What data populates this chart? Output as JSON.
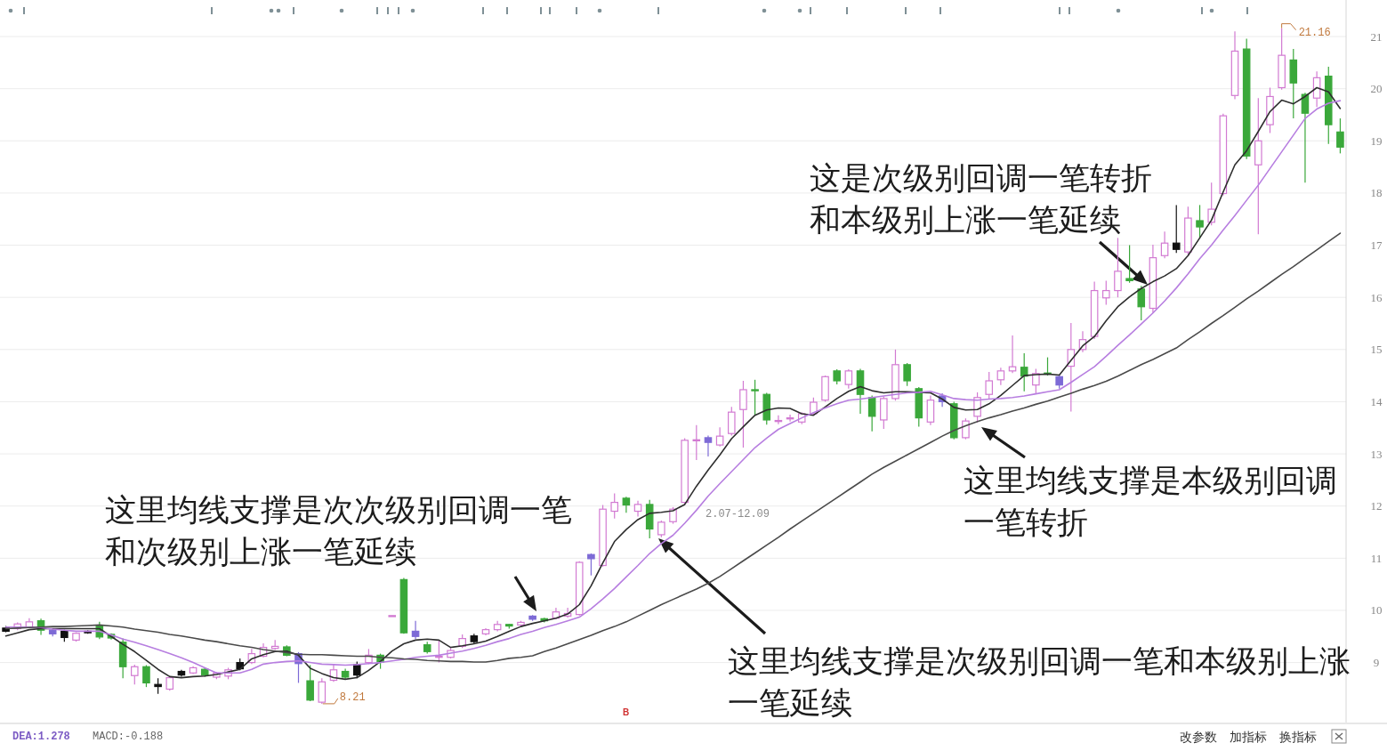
{
  "chart_data": {
    "type": "candlestick",
    "categories": [
      null,
      null,
      null,
      null,
      null,
      null,
      null,
      null,
      null,
      null,
      null,
      null,
      null,
      null,
      null,
      null,
      null,
      null,
      null,
      null,
      null,
      null,
      null,
      null,
      null,
      null,
      null,
      null,
      null,
      null,
      null,
      null,
      null,
      null,
      null,
      null,
      null,
      null,
      null,
      null,
      null,
      null,
      null,
      null,
      null,
      null,
      null,
      null,
      null,
      null,
      null,
      null,
      null,
      null,
      null,
      null,
      null,
      null,
      null,
      null,
      null,
      null,
      null,
      null,
      null,
      null,
      null,
      null,
      null,
      null,
      null,
      null,
      null,
      null,
      null,
      null,
      null,
      null,
      null,
      null,
      null,
      null,
      null,
      null,
      null,
      null,
      null,
      null,
      null,
      null,
      null,
      null,
      null,
      null,
      null,
      null,
      null,
      null,
      null,
      null,
      null,
      null,
      null,
      null,
      null,
      null,
      null,
      null,
      null,
      null,
      null,
      null,
      null,
      null,
      null
    ],
    "ohlc": [
      [
        9.66,
        9.7,
        9.58,
        9.6
      ],
      [
        9.65,
        9.77,
        9.62,
        9.74
      ],
      [
        9.68,
        9.85,
        9.66,
        9.78
      ],
      [
        9.8,
        9.84,
        9.53,
        9.62
      ],
      [
        9.62,
        9.65,
        9.5,
        9.55
      ],
      [
        9.6,
        9.63,
        9.4,
        9.48
      ],
      [
        9.43,
        9.58,
        9.4,
        9.56
      ],
      [
        9.6,
        9.62,
        9.55,
        9.57
      ],
      [
        9.7,
        9.78,
        9.45,
        9.49
      ],
      [
        9.54,
        9.56,
        9.44,
        9.47
      ],
      [
        9.39,
        9.46,
        8.7,
        8.92
      ],
      [
        8.75,
        8.96,
        8.58,
        8.92
      ],
      [
        8.92,
        8.95,
        8.53,
        8.61
      ],
      [
        8.58,
        8.7,
        8.4,
        8.54
      ],
      [
        8.49,
        8.73,
        8.46,
        8.71
      ],
      [
        8.83,
        8.86,
        8.73,
        8.76
      ],
      [
        8.8,
        8.93,
        8.78,
        8.9
      ],
      [
        8.87,
        8.89,
        8.73,
        8.76
      ],
      [
        8.72,
        8.82,
        8.68,
        8.8
      ],
      [
        8.74,
        8.9,
        8.68,
        8.86
      ],
      [
        9.0,
        9.08,
        8.85,
        8.88
      ],
      [
        9.0,
        9.26,
        8.97,
        9.17
      ],
      [
        9.12,
        9.37,
        9.1,
        9.29
      ],
      [
        9.27,
        9.43,
        9.24,
        9.31
      ],
      [
        9.3,
        9.33,
        9.12,
        9.14
      ],
      [
        9.17,
        9.2,
        8.61,
        8.98
      ],
      [
        8.65,
        8.95,
        8.26,
        8.28
      ],
      [
        8.24,
        8.7,
        8.21,
        8.63
      ],
      [
        8.66,
        8.96,
        8.63,
        8.86
      ],
      [
        8.83,
        8.88,
        8.68,
        8.72
      ],
      [
        8.96,
        9.02,
        8.7,
        8.76
      ],
      [
        9.0,
        9.26,
        8.97,
        9.14
      ],
      [
        9.14,
        9.17,
        8.88,
        9.01
      ],
      [
        9.88,
        9.9,
        9.88,
        9.9
      ],
      [
        10.59,
        10.62,
        9.55,
        9.57
      ],
      [
        9.6,
        9.8,
        9.45,
        9.5
      ],
      [
        9.34,
        9.4,
        9.17,
        9.21
      ],
      [
        9.1,
        9.43,
        9.0,
        9.12
      ],
      [
        9.1,
        9.28,
        9.08,
        9.23
      ],
      [
        9.31,
        9.54,
        9.28,
        9.46
      ],
      [
        9.51,
        9.55,
        9.37,
        9.4
      ],
      [
        9.55,
        9.66,
        9.52,
        9.63
      ],
      [
        9.63,
        9.8,
        9.6,
        9.73
      ],
      [
        9.73,
        9.74,
        9.65,
        9.7
      ],
      [
        9.72,
        9.8,
        9.7,
        9.77
      ],
      [
        9.89,
        9.91,
        9.8,
        9.83
      ],
      [
        9.84,
        9.86,
        9.77,
        9.8
      ],
      [
        9.85,
        10.05,
        9.83,
        9.97
      ],
      [
        9.89,
        10.05,
        9.86,
        9.94
      ],
      [
        9.92,
        10.94,
        9.9,
        10.92
      ],
      [
        11.07,
        11.09,
        10.67,
        10.99
      ],
      [
        10.86,
        12.02,
        10.84,
        11.94
      ],
      [
        11.9,
        12.24,
        11.76,
        12.07
      ],
      [
        12.15,
        12.18,
        11.87,
        12.02
      ],
      [
        11.9,
        12.1,
        11.8,
        12.03
      ],
      [
        12.03,
        12.12,
        11.38,
        11.56
      ],
      [
        11.45,
        11.72,
        11.4,
        11.69
      ],
      [
        11.7,
        11.98,
        11.66,
        11.94
      ],
      [
        12.07,
        13.3,
        12.02,
        13.26
      ],
      [
        13.25,
        13.55,
        12.88,
        13.27
      ],
      [
        13.31,
        13.35,
        12.95,
        13.22
      ],
      [
        13.17,
        13.51,
        13.14,
        13.34
      ],
      [
        13.39,
        13.9,
        13.35,
        13.8
      ],
      [
        13.85,
        14.4,
        13.12,
        14.23
      ],
      [
        14.23,
        14.42,
        13.74,
        14.21
      ],
      [
        14.14,
        14.17,
        13.56,
        13.65
      ],
      [
        13.62,
        13.74,
        13.57,
        13.64
      ],
      [
        13.67,
        13.75,
        13.62,
        13.69
      ],
      [
        13.61,
        13.8,
        13.57,
        13.77
      ],
      [
        13.77,
        14.08,
        13.74,
        13.99
      ],
      [
        14.03,
        14.5,
        14.0,
        14.48
      ],
      [
        14.59,
        14.62,
        14.33,
        14.4
      ],
      [
        14.33,
        14.62,
        14.25,
        14.59
      ],
      [
        14.59,
        14.63,
        13.77,
        14.14
      ],
      [
        14.08,
        14.12,
        13.43,
        13.72
      ],
      [
        13.65,
        14.1,
        13.48,
        14.06
      ],
      [
        14.06,
        15.0,
        14.02,
        14.71
      ],
      [
        14.71,
        14.74,
        14.3,
        14.4
      ],
      [
        14.25,
        14.28,
        13.52,
        13.69
      ],
      [
        13.61,
        14.12,
        13.55,
        14.03
      ],
      [
        14.11,
        14.16,
        13.9,
        14.0
      ],
      [
        13.96,
        14.0,
        13.28,
        13.31
      ],
      [
        13.31,
        13.68,
        13.28,
        13.63
      ],
      [
        13.72,
        14.18,
        13.6,
        14.08
      ],
      [
        14.14,
        14.57,
        14.05,
        14.4
      ],
      [
        14.42,
        14.65,
        14.32,
        14.59
      ],
      [
        14.59,
        15.27,
        14.55,
        14.67
      ],
      [
        14.66,
        14.93,
        14.2,
        14.49
      ],
      [
        14.32,
        14.63,
        14.16,
        14.54
      ],
      [
        14.55,
        14.85,
        14.5,
        14.53
      ],
      [
        14.48,
        14.52,
        14.25,
        14.32
      ],
      [
        14.68,
        15.51,
        13.81,
        15.0
      ],
      [
        15.0,
        15.35,
        14.95,
        15.19
      ],
      [
        15.25,
        16.3,
        15.2,
        16.13
      ],
      [
        15.99,
        16.32,
        15.86,
        16.13
      ],
      [
        16.13,
        17.14,
        16.0,
        16.5
      ],
      [
        16.36,
        17.0,
        16.28,
        16.32
      ],
      [
        16.16,
        16.22,
        15.56,
        15.82
      ],
      [
        15.79,
        17.01,
        15.7,
        16.76
      ],
      [
        16.8,
        17.26,
        16.75,
        17.04
      ],
      [
        17.04,
        17.77,
        16.85,
        16.92
      ],
      [
        16.87,
        17.74,
        16.82,
        17.52
      ],
      [
        17.47,
        17.77,
        17.13,
        17.35
      ],
      [
        17.44,
        18.2,
        17.38,
        17.69
      ],
      [
        17.99,
        19.52,
        17.95,
        19.48
      ],
      [
        19.87,
        21.1,
        19.8,
        20.72
      ],
      [
        20.76,
        20.96,
        18.65,
        18.71
      ],
      [
        18.54,
        19.82,
        17.21,
        19.0
      ],
      [
        19.31,
        20.02,
        19.15,
        19.85
      ],
      [
        20.02,
        21.16,
        19.98,
        20.64
      ],
      [
        20.55,
        20.76,
        19.43,
        20.11
      ],
      [
        19.89,
        19.92,
        18.2,
        19.53
      ],
      [
        19.82,
        20.33,
        19.65,
        20.21
      ],
      [
        20.24,
        20.42,
        18.94,
        19.31
      ],
      [
        19.17,
        19.43,
        18.76,
        18.88
      ]
    ],
    "colors": [
      "#111111",
      "#d27ad2",
      "#d27ad2",
      "#3aa83a",
      "#7d6ad6",
      "#111111",
      "#d27ad2",
      "#111111",
      "#3aa83a",
      "#3aa83a",
      "#3aa83a",
      "#d27ad2",
      "#3aa83a",
      "#111111",
      "#d27ad2",
      "#111111",
      "#d27ad2",
      "#3aa83a",
      "#d27ad2",
      "#d27ad2",
      "#111111",
      "#d27ad2",
      "#d27ad2",
      "#d27ad2",
      "#3aa83a",
      "#7d6ad6",
      "#3aa83a",
      "#d27ad2",
      "#d27ad2",
      "#3aa83a",
      "#111111",
      "#d27ad2",
      "#3aa83a",
      "#d27ad2",
      "#3aa83a",
      "#7d6ad6",
      "#3aa83a",
      "#d27ad2",
      "#d27ad2",
      "#d27ad2",
      "#111111",
      "#d27ad2",
      "#d27ad2",
      "#3aa83a",
      "#d27ad2",
      "#7d6ad6",
      "#3aa83a",
      "#d27ad2",
      "#d27ad2",
      "#d27ad2",
      "#7d6ad6",
      "#d27ad2",
      "#d27ad2",
      "#3aa83a",
      "#d27ad2",
      "#3aa83a",
      "#d27ad2",
      "#d27ad2",
      "#d27ad2",
      "#d27ad2",
      "#7d6ad6",
      "#d27ad2",
      "#d27ad2",
      "#d27ad2",
      "#3aa83a",
      "#3aa83a",
      "#d27ad2",
      "#d27ad2",
      "#d27ad2",
      "#d27ad2",
      "#d27ad2",
      "#3aa83a",
      "#d27ad2",
      "#3aa83a",
      "#3aa83a",
      "#d27ad2",
      "#d27ad2",
      "#3aa83a",
      "#3aa83a",
      "#d27ad2",
      "#7d6ad6",
      "#3aa83a",
      "#d27ad2",
      "#d27ad2",
      "#d27ad2",
      "#d27ad2",
      "#d27ad2",
      "#3aa83a",
      "#d27ad2",
      "#3aa83a",
      "#7d6ad6",
      "#d27ad2",
      "#d27ad2",
      "#d27ad2",
      "#d27ad2",
      "#d27ad2",
      "#3aa83a",
      "#3aa83a",
      "#d27ad2",
      "#d27ad2",
      "#111111",
      "#d27ad2",
      "#3aa83a",
      "#d27ad2",
      "#d27ad2",
      "#d27ad2",
      "#3aa83a",
      "#d27ad2",
      "#d27ad2",
      "#d27ad2",
      "#3aa83a",
      "#3aa83a",
      "#d27ad2",
      "#3aa83a",
      "#3aa83a"
    ],
    "series": [
      {
        "type": "line",
        "color": "#2e2e2e",
        "values": [
          9.51,
          9.57,
          9.63,
          9.65,
          9.65,
          9.65,
          9.65,
          9.65,
          9.65,
          9.5,
          9.35,
          9.21,
          9.04,
          8.87,
          8.73,
          8.71,
          8.73,
          8.74,
          8.77,
          8.82,
          8.87,
          9.07,
          9.15,
          9.21,
          9.22,
          9.14,
          8.89,
          8.79,
          8.71,
          8.68,
          8.71,
          8.85,
          9.02,
          9.22,
          9.36,
          9.43,
          9.45,
          9.43,
          9.29,
          9.32,
          9.36,
          9.41,
          9.5,
          9.6,
          9.69,
          9.75,
          9.8,
          9.85,
          9.93,
          10.11,
          10.47,
          10.91,
          11.32,
          11.55,
          11.74,
          11.86,
          11.88,
          11.91,
          12.03,
          12.38,
          12.69,
          12.98,
          13.29,
          13.52,
          13.74,
          13.84,
          13.88,
          13.87,
          13.77,
          13.74,
          13.9,
          14.06,
          14.2,
          14.29,
          14.21,
          14.17,
          14.19,
          14.19,
          14.18,
          14.17,
          14.05,
          13.89,
          13.84,
          13.85,
          13.96,
          14.12,
          14.31,
          14.5,
          14.52,
          14.53,
          14.51,
          14.79,
          15.07,
          15.25,
          15.55,
          15.82,
          16.01,
          16.17,
          16.3,
          16.41,
          16.55,
          16.8,
          17.14,
          17.48,
          18.02,
          18.54,
          18.81,
          19.18,
          19.56,
          19.78,
          19.71,
          19.85,
          20.02,
          19.94,
          19.62
        ]
      },
      {
        "type": "line",
        "color": "#b77ee0",
        "values": [
          9.68,
          9.68,
          9.68,
          9.67,
          9.64,
          9.62,
          9.6,
          9.6,
          9.6,
          9.53,
          9.45,
          9.39,
          9.32,
          9.25,
          9.17,
          9.09,
          9.0,
          8.9,
          8.8,
          8.8,
          8.8,
          8.87,
          8.97,
          9.0,
          9.02,
          9.03,
          9.0,
          8.97,
          8.96,
          8.95,
          8.96,
          8.98,
          9.0,
          9.03,
          9.06,
          9.1,
          9.12,
          9.14,
          9.18,
          9.22,
          9.27,
          9.33,
          9.4,
          9.46,
          9.54,
          9.6,
          9.67,
          9.73,
          9.8,
          9.87,
          10.03,
          10.22,
          10.42,
          10.64,
          10.86,
          11.09,
          11.28,
          11.44,
          11.67,
          11.92,
          12.19,
          12.43,
          12.66,
          12.89,
          13.12,
          13.3,
          13.47,
          13.58,
          13.69,
          13.79,
          13.88,
          13.96,
          14.03,
          14.05,
          14.08,
          14.11,
          14.14,
          14.17,
          14.18,
          14.2,
          14.13,
          14.06,
          14.04,
          14.03,
          14.05,
          14.06,
          14.08,
          14.11,
          14.15,
          14.19,
          14.23,
          14.37,
          14.52,
          14.67,
          14.87,
          15.08,
          15.28,
          15.49,
          15.7,
          15.93,
          16.18,
          16.45,
          16.74,
          17.0,
          17.29,
          17.57,
          17.86,
          18.15,
          18.47,
          18.79,
          19.11,
          19.43,
          19.61,
          19.72,
          19.77
        ]
      },
      {
        "type": "line",
        "color": "#4a4a4a",
        "values": [
          9.65,
          9.66,
          9.67,
          9.68,
          9.69,
          9.69,
          9.7,
          9.71,
          9.72,
          9.7,
          9.68,
          9.64,
          9.61,
          9.58,
          9.54,
          9.51,
          9.47,
          9.43,
          9.4,
          9.36,
          9.32,
          9.29,
          9.25,
          9.22,
          9.19,
          9.16,
          9.15,
          9.15,
          9.14,
          9.13,
          9.12,
          9.12,
          9.1,
          9.09,
          9.07,
          9.06,
          9.04,
          9.03,
          9.02,
          9.02,
          9.01,
          9.01,
          9.04,
          9.08,
          9.1,
          9.13,
          9.21,
          9.28,
          9.36,
          9.44,
          9.52,
          9.61,
          9.69,
          9.78,
          9.89,
          10.0,
          10.11,
          10.21,
          10.31,
          10.41,
          10.52,
          10.65,
          10.8,
          10.95,
          11.1,
          11.25,
          11.4,
          11.56,
          11.71,
          11.86,
          12.01,
          12.16,
          12.31,
          12.46,
          12.61,
          12.74,
          12.86,
          12.98,
          13.1,
          13.22,
          13.34,
          13.45,
          13.54,
          13.62,
          13.69,
          13.75,
          13.82,
          13.88,
          13.95,
          14.01,
          14.09,
          14.16,
          14.24,
          14.31,
          14.39,
          14.49,
          14.6,
          14.71,
          14.81,
          14.92,
          15.03,
          15.19,
          15.34,
          15.5,
          15.65,
          15.81,
          15.97,
          16.12,
          16.28,
          16.44,
          16.59,
          16.75,
          16.91,
          17.07,
          17.23
        ]
      }
    ],
    "ylim": [
      7.85,
      21.7
    ],
    "yticks": [
      9,
      10,
      11,
      12,
      13,
      14,
      15,
      16,
      17,
      18,
      19,
      20,
      21
    ],
    "grid": "y",
    "tick_labels": "y",
    "annotations": [
      "这是次级别回调一笔转折和本级别上涨一笔延续",
      "这里均线支撑是本级别回调一笔转折",
      "这里均线支撑是次次级别回调一笔和次级别上涨一笔延续",
      "这里均线支撑是次级别回调一笔和本级别上涨一笔延续",
      "2.07-12.09",
      "B",
      "DEA:1.278",
      "MACD:-0.188",
      "改参数",
      "加指标",
      "换指标",
      "8.21",
      "21.16"
    ]
  }
}
